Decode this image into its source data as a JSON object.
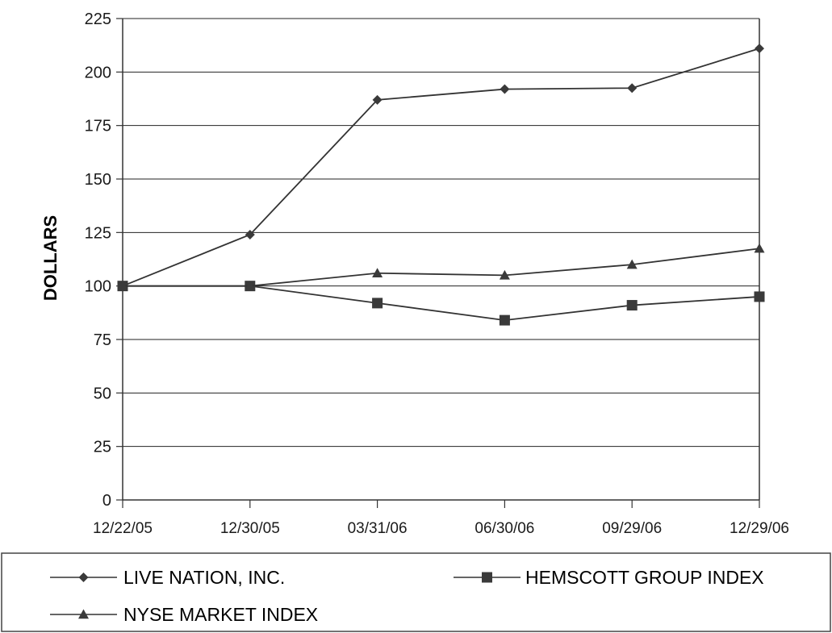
{
  "chart_data": {
    "type": "line",
    "title": "",
    "xlabel": "",
    "ylabel": "DOLLARS",
    "categories": [
      "12/22/05",
      "12/30/05",
      "03/31/06",
      "06/30/06",
      "09/29/06",
      "12/29/06"
    ],
    "ylim": [
      0,
      225
    ],
    "yticks": [
      0,
      25,
      50,
      75,
      100,
      125,
      150,
      175,
      200,
      225
    ],
    "grid": true,
    "legend_position": "bottom",
    "series": [
      {
        "name": "LIVE NATION, INC.",
        "marker": "diamond",
        "values": [
          100,
          124,
          187,
          192,
          192.5,
          211
        ]
      },
      {
        "name": "HEMSCOTT GROUP INDEX",
        "marker": "square",
        "values": [
          100,
          100,
          92,
          84,
          91,
          95
        ]
      },
      {
        "name": "NYSE MARKET INDEX",
        "marker": "triangle",
        "values": [
          100,
          100,
          106,
          105,
          110,
          117.5
        ]
      }
    ],
    "line_color": "#333333",
    "marker_color": "#3a3a3a",
    "grid_color": "#222222"
  }
}
